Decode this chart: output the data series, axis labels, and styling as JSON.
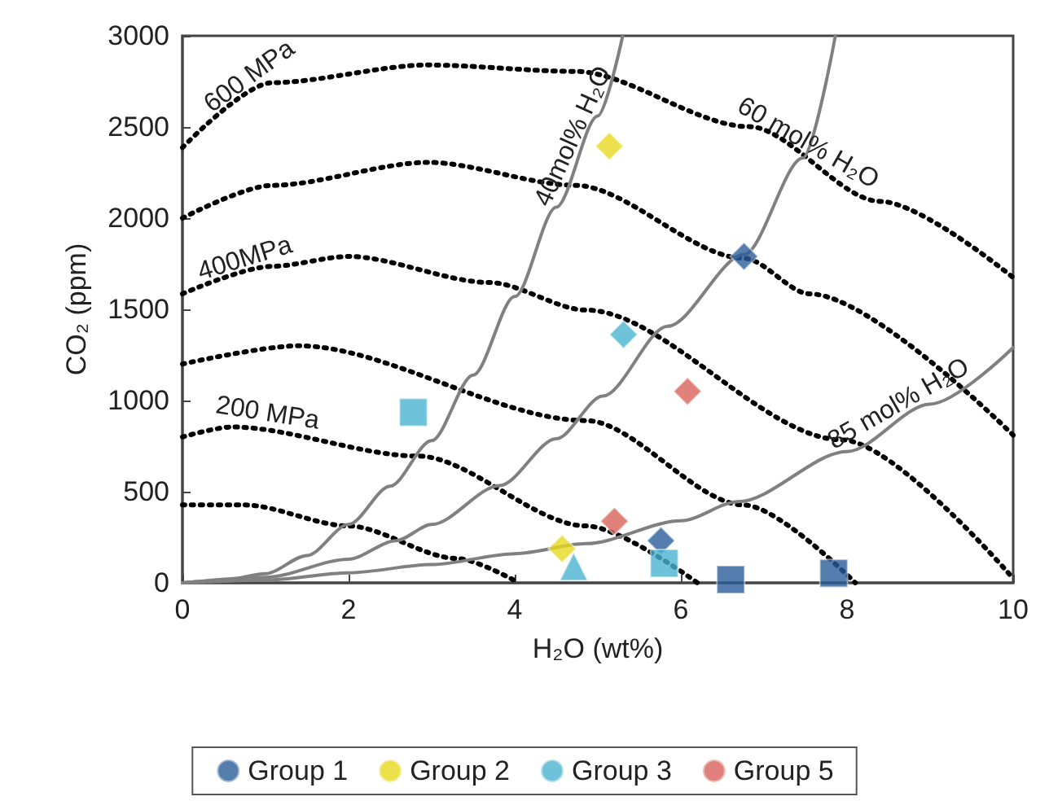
{
  "chart_data": {
    "type": "scatter",
    "xlabel": "H₂O (wt%)",
    "ylabel": "CO₂ (ppm)",
    "xlim": [
      0,
      10
    ],
    "xticks": [
      0,
      2,
      4,
      6,
      8,
      10
    ],
    "ylim": [
      0,
      3000
    ],
    "yticks": [
      0,
      500,
      1000,
      1500,
      2000,
      2500,
      3000
    ],
    "grid": false,
    "legend": "bottom",
    "series": [
      {
        "type": "line",
        "color": "#000000",
        "line_style": "dotted",
        "marker": "none",
        "x": [
          0,
          1.08,
          2.96,
          4.73,
          6.82,
          8.4,
          10
        ],
        "values": [
          2387,
          2743,
          2840,
          2805,
          2502,
          2092,
          1674
        ]
      },
      {
        "type": "line",
        "color": "#000000",
        "line_style": "dotted",
        "marker": "none",
        "x": [
          0,
          1.08,
          2.96,
          4.73,
          6.76,
          7.55,
          10
        ],
        "values": [
          2000,
          2180,
          2306,
          2180,
          1780,
          1585,
          810
        ]
      },
      {
        "type": "line",
        "color": "#000000",
        "line_style": "dotted",
        "marker": "none",
        "x": [
          0,
          1.08,
          2.0,
          3.7,
          4.86,
          7.94,
          9.96
        ],
        "values": [
          1585,
          1736,
          1790,
          1647,
          1496,
          784,
          45
        ]
      },
      {
        "type": "line",
        "color": "#000000",
        "line_style": "dotted",
        "marker": "none",
        "x": [
          0,
          1.4,
          4.86,
          6.76,
          8.1
        ],
        "values": [
          1200,
          1300,
          890,
          427,
          0
        ]
      },
      {
        "type": "line",
        "color": "#000000",
        "line_style": "dotted",
        "marker": "none",
        "x": [
          0,
          0.6,
          2.84,
          4.86,
          6.2
        ],
        "values": [
          800,
          855,
          695,
          312,
          0
        ]
      },
      {
        "type": "line",
        "color": "#000000",
        "line_style": "dotted",
        "marker": "none",
        "x": [
          0,
          0.75,
          2.0,
          3.3,
          4.05
        ],
        "values": [
          427,
          427,
          312,
          134,
          0
        ]
      },
      {
        "type": "line",
        "color": "#808080",
        "line_style": "solid",
        "marker": "none",
        "x": [
          0,
          0.5,
          1,
          1.5,
          2,
          2.5,
          3,
          3.5,
          4,
          4.5,
          5,
          5.3
        ],
        "values": [
          0,
          15,
          50,
          150,
          320,
          530,
          780,
          1140,
          1570,
          2060,
          2560,
          3000
        ]
      },
      {
        "type": "line",
        "color": "#808080",
        "line_style": "solid",
        "marker": "none",
        "x": [
          0,
          1,
          2,
          2.57,
          3,
          3.82,
          4.5,
          5.06,
          5.84,
          6.76,
          7.47,
          7.86
        ],
        "values": [
          0,
          30,
          130,
          231,
          320,
          534,
          790,
          1024,
          1407,
          1800,
          2330,
          3000
        ]
      },
      {
        "type": "line",
        "color": "#808080",
        "line_style": "solid",
        "marker": "none",
        "x": [
          0,
          1,
          2,
          3,
          4,
          4.86,
          6,
          6.69,
          8,
          9,
          10
        ],
        "values": [
          0,
          15,
          55,
          100,
          160,
          215,
          340,
          445,
          720,
          980,
          1290
        ]
      },
      {
        "name": "Group 1",
        "color": "#2a5d9a",
        "marker": "diamond",
        "x": [
          6.76,
          5.76
        ],
        "values": [
          1790,
          231
        ]
      },
      {
        "color": "#2a5d9a",
        "marker": "square",
        "x": [
          6.6,
          7.84
        ],
        "values": [
          18,
          53
        ]
      },
      {
        "name": "Group 2",
        "color": "#e8d820",
        "marker": "diamond",
        "x": [
          5.14,
          4.57
        ],
        "values": [
          2395,
          187
        ]
      },
      {
        "name": "Group 3",
        "color": "#4ab3cf",
        "marker": "diamond",
        "x": [
          5.31
        ],
        "values": [
          1362
        ]
      },
      {
        "color": "#4ab3cf",
        "marker": "square",
        "x": [
          2.78,
          5.8
        ],
        "values": [
          935,
          107
        ]
      },
      {
        "color": "#4ab3cf",
        "marker": "triangle",
        "x": [
          4.71
        ],
        "values": [
          89
        ]
      },
      {
        "name": "Group 5",
        "color": "#d9625a",
        "marker": "diamond",
        "x": [
          6.08,
          5.2
        ],
        "values": [
          1050,
          338
        ]
      }
    ],
    "annotations": [
      {
        "text": "600 MPa",
        "x": 0.9,
        "y": 2700
      },
      {
        "text": "400MPa",
        "x": 0.8,
        "y": 1690
      },
      {
        "text": "200 MPa",
        "x": 1.0,
        "y": 840
      },
      {
        "text": "40mol% H₂O",
        "x": 4.85,
        "y": 2400
      },
      {
        "text": "60 mol% H₂O",
        "x": 7.45,
        "y": 2330
      },
      {
        "text": "85 mol% H₂O",
        "x": 8.7,
        "y": 900
      }
    ]
  }
}
